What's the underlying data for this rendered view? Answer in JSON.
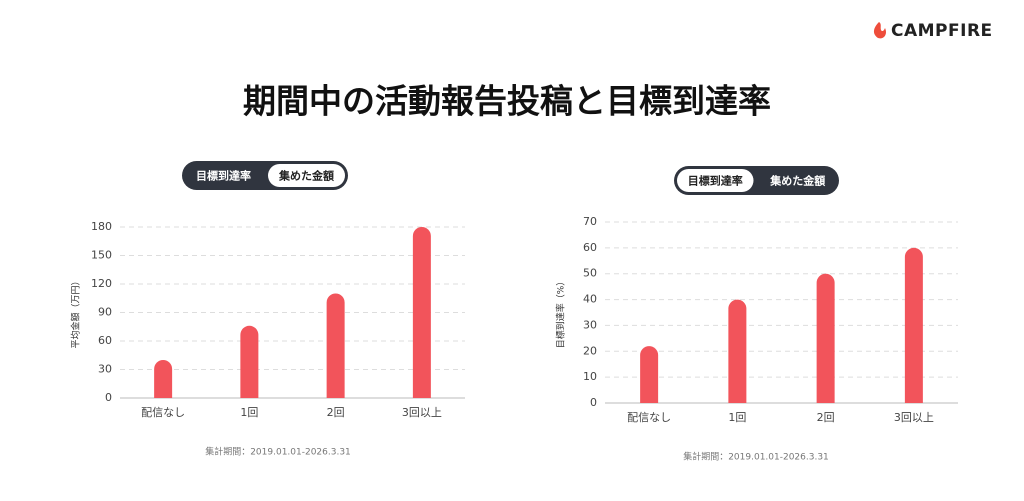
{
  "header": {
    "logo": "CAMPFIRE",
    "title": "期間中の活動報告投稿と目標到達率"
  },
  "chart_data": [
    {
      "type": "bar",
      "toggle": {
        "options": [
          "目標到達率",
          "集めた金額"
        ],
        "active": 1
      },
      "ylabel": "平均金額（万円）",
      "categories": [
        "配信なし",
        "1回",
        "2回",
        "3回以上"
      ],
      "values": [
        40,
        76,
        110,
        180
      ],
      "color": "#f2545b",
      "ylim": [
        0,
        180
      ],
      "yticks": [
        0,
        30,
        60,
        90,
        120,
        150,
        180
      ],
      "grid": true,
      "note": "集計期間：2019.01.01-2026.3.31"
    },
    {
      "type": "bar",
      "toggle": {
        "options": [
          "目標到達率",
          "集めた金額"
        ],
        "active": 0
      },
      "ylabel": "目標到達率（%）",
      "categories": [
        "配信なし",
        "1回",
        "2回",
        "3回以上"
      ],
      "values": [
        22,
        40,
        50,
        60
      ],
      "color": "#f2545b",
      "ylim": [
        0,
        70
      ],
      "yticks": [
        0,
        10,
        20,
        30,
        40,
        50,
        60,
        70
      ],
      "grid": true,
      "note": "集計期間：2019.01.01-2026.3.31"
    }
  ]
}
